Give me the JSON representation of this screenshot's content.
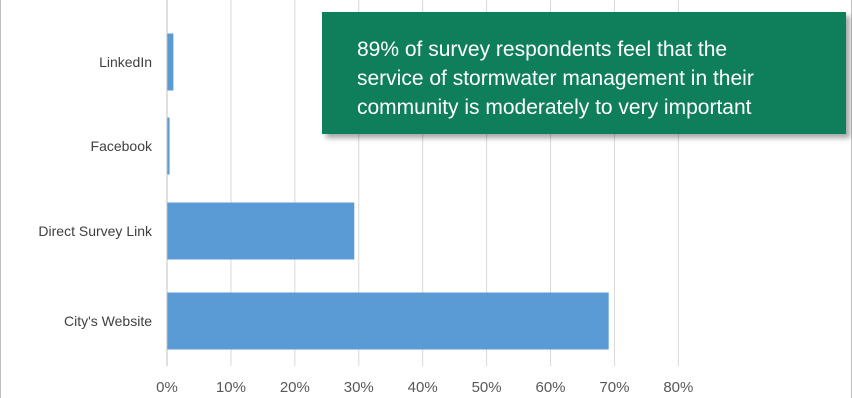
{
  "chart_data": {
    "type": "bar",
    "orientation": "horizontal",
    "categories": [
      "LinkedIn",
      "Facebook",
      "Direct Survey Link",
      "City's Website"
    ],
    "values": [
      1.0,
      0.4,
      29.3,
      69.1
    ],
    "xlim": [
      0,
      80
    ],
    "x_ticks": [
      "0%",
      "10%",
      "20%",
      "30%",
      "40%",
      "50%",
      "60%",
      "70%",
      "80%"
    ],
    "grid": "vertical",
    "bar_color": "#5b9bd5"
  },
  "callout": {
    "lines": [
      "89% of survey respondents feel that the",
      "service of stormwater management in their",
      "community is moderately to very important"
    ],
    "background": "#0f7f5b"
  }
}
